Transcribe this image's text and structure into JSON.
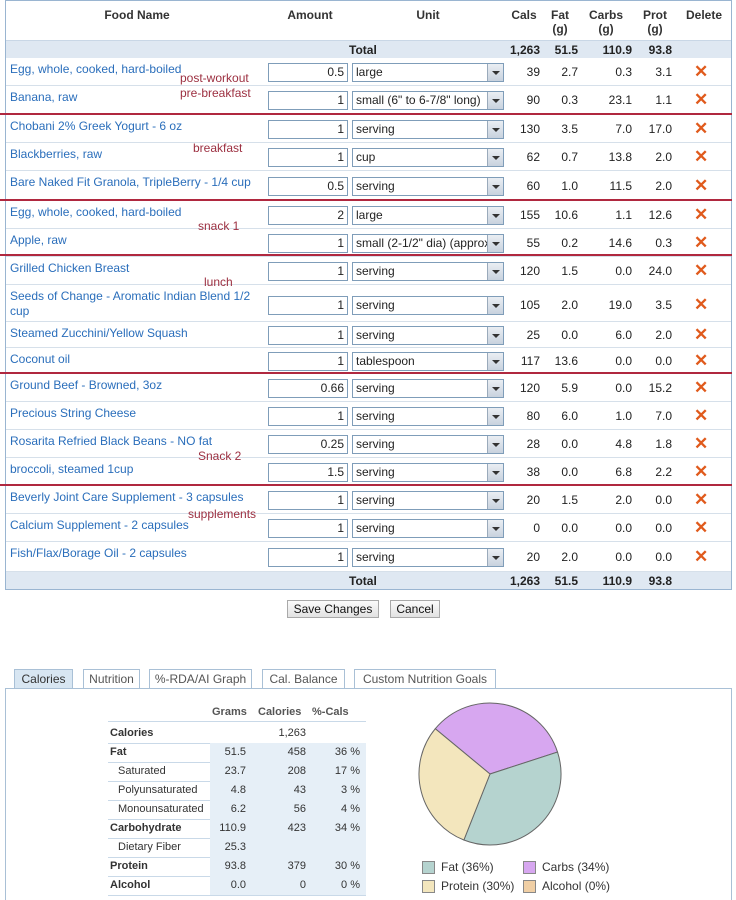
{
  "headers": {
    "food": "Food Name",
    "amount": "Amount",
    "unit": "Unit",
    "cals": "Cals",
    "fat1": "Fat",
    "fat2": "(g)",
    "carbs1": "Carbs",
    "carbs2": "(g)",
    "prot1": "Prot",
    "prot2": "(g)",
    "delete": "Delete"
  },
  "totals": {
    "label": "Total",
    "cals": "1,263",
    "fat": "51.5",
    "carbs": "110.9",
    "prot": "93.8"
  },
  "rows": [
    {
      "name": "Egg, whole, cooked, hard-boiled",
      "amount": "0.5",
      "unit": "large",
      "cals": "39",
      "fat": "2.7",
      "carbs": "0.3",
      "prot": "3.1"
    },
    {
      "name": "Banana, raw",
      "amount": "1",
      "unit": "small (6\" to 6-7/8\" long)",
      "cals": "90",
      "fat": "0.3",
      "carbs": "23.1",
      "prot": "1.1"
    },
    {
      "name": "Chobani 2% Greek Yogurt - 6 oz",
      "amount": "1",
      "unit": "serving",
      "cals": "130",
      "fat": "3.5",
      "carbs": "7.0",
      "prot": "17.0"
    },
    {
      "name": "Blackberries, raw",
      "amount": "1",
      "unit": "cup",
      "cals": "62",
      "fat": "0.7",
      "carbs": "13.8",
      "prot": "2.0"
    },
    {
      "name": "Bare Naked Fit Granola, TripleBerry - 1/4 cup",
      "amount": "0.5",
      "unit": "serving",
      "cals": "60",
      "fat": "1.0",
      "carbs": "11.5",
      "prot": "2.0"
    },
    {
      "name": "Egg, whole, cooked, hard-boiled",
      "amount": "2",
      "unit": "large",
      "cals": "155",
      "fat": "10.6",
      "carbs": "1.1",
      "prot": "12.6"
    },
    {
      "name": "Apple, raw",
      "amount": "1",
      "unit": "small (2-1/2\" dia) (approx)",
      "cals": "55",
      "fat": "0.2",
      "carbs": "14.6",
      "prot": "0.3"
    },
    {
      "name": "Grilled Chicken Breast",
      "amount": "1",
      "unit": "serving",
      "cals": "120",
      "fat": "1.5",
      "carbs": "0.0",
      "prot": "24.0"
    },
    {
      "name": "Seeds of Change - Aromatic Indian Blend 1/2 cup",
      "amount": "1",
      "unit": "serving",
      "cals": "105",
      "fat": "2.0",
      "carbs": "19.0",
      "prot": "3.5"
    },
    {
      "name": "Steamed Zucchini/Yellow Squash",
      "amount": "1",
      "unit": "serving",
      "cals": "25",
      "fat": "0.0",
      "carbs": "6.0",
      "prot": "2.0"
    },
    {
      "name": "Coconut oil",
      "amount": "1",
      "unit": "tablespoon",
      "cals": "117",
      "fat": "13.6",
      "carbs": "0.0",
      "prot": "0.0"
    },
    {
      "name": "Ground Beef - Browned, 3oz",
      "amount": "0.66",
      "unit": "serving",
      "cals": "120",
      "fat": "5.9",
      "carbs": "0.0",
      "prot": "15.2"
    },
    {
      "name": "Precious String Cheese",
      "amount": "1",
      "unit": "serving",
      "cals": "80",
      "fat": "6.0",
      "carbs": "1.0",
      "prot": "7.0"
    },
    {
      "name": "Rosarita Refried Black Beans - NO fat",
      "amount": "0.25",
      "unit": "serving",
      "cals": "28",
      "fat": "0.0",
      "carbs": "4.8",
      "prot": "1.8"
    },
    {
      "name": "broccoli, steamed 1cup",
      "amount": "1.5",
      "unit": "serving",
      "cals": "38",
      "fat": "0.0",
      "carbs": "6.8",
      "prot": "2.2"
    },
    {
      "name": "Beverly Joint Care Supplement - 3 capsules",
      "amount": "1",
      "unit": "serving",
      "cals": "20",
      "fat": "1.5",
      "carbs": "2.0",
      "prot": "0.0"
    },
    {
      "name": "Calcium Supplement - 2 capsules",
      "amount": "1",
      "unit": "serving",
      "cals": "0",
      "fat": "0.0",
      "carbs": "0.0",
      "prot": "0.0"
    },
    {
      "name": "Fish/Flax/Borage Oil - 2 capsules",
      "amount": "1",
      "unit": "serving",
      "cals": "20",
      "fat": "2.0",
      "carbs": "0.0",
      "prot": "0.0"
    }
  ],
  "notes": {
    "post_workout": "post-workout",
    "pre_breakfast": "pre-breakfast",
    "breakfast": "breakfast",
    "snack1": "snack 1",
    "lunch": "lunch",
    "snack2": "Snack 2",
    "supplements": "supplements"
  },
  "buttons": {
    "save": "Save Changes",
    "cancel": "Cancel"
  },
  "tabs": [
    "Calories",
    "Nutrition",
    "%-RDA/AI Graph",
    "Cal. Balance",
    "Custom Nutrition Goals"
  ],
  "nutrition": {
    "headers": {
      "grams": "Grams",
      "calories": "Calories",
      "pct": "%-Cals"
    },
    "rows": [
      {
        "label": "Calories",
        "grams": "",
        "cals": "1,263",
        "pct": ""
      },
      {
        "label": "Fat",
        "grams": "51.5",
        "cals": "458",
        "pct": "36 %"
      },
      {
        "label": "Saturated",
        "grams": "23.7",
        "cals": "208",
        "pct": "17 %"
      },
      {
        "label": "Polyunsaturated",
        "grams": "4.8",
        "cals": "43",
        "pct": "3 %"
      },
      {
        "label": "Monounsaturated",
        "grams": "6.2",
        "cals": "56",
        "pct": "4 %"
      },
      {
        "label": "Carbohydrate",
        "grams": "110.9",
        "cals": "423",
        "pct": "34 %"
      },
      {
        "label": "Dietary Fiber",
        "grams": "25.3",
        "cals": "",
        "pct": ""
      },
      {
        "label": "Protein",
        "grams": "93.8",
        "cals": "379",
        "pct": "30 %"
      },
      {
        "label": "Alcohol",
        "grams": "0.0",
        "cals": "0",
        "pct": "0 %"
      }
    ]
  },
  "chart_data": {
    "type": "pie",
    "slices": [
      {
        "label": "Fat (36%)",
        "value": 36,
        "color": "#b5d3cf"
      },
      {
        "label": "Carbs (34%)",
        "value": 34,
        "color": "#d7a7f0"
      },
      {
        "label": "Protein (30%)",
        "value": 30,
        "color": "#f3e6bd"
      },
      {
        "label": "Alcohol (0%)",
        "value": 0,
        "color": "#f0cfa5"
      }
    ]
  },
  "colors": {
    "link": "#2a6ebb",
    "separator": "#b0283f",
    "delete": "#e05a1c"
  }
}
